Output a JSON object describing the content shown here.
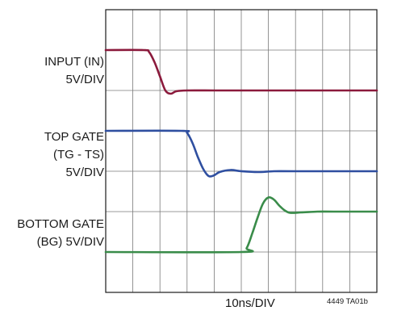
{
  "chart_data": {
    "type": "line",
    "title": "",
    "xlabel": "10ns/DIV",
    "ylabel": "",
    "figure_code": "4449 TA01b",
    "grid": true,
    "x_divisions": 10,
    "y_divisions": 7,
    "x_unit_ns_per_div": 10,
    "xlim": [
      0,
      100
    ],
    "channels": [
      {
        "id": "input",
        "label_lines": [
          "INPUT (IN)",
          "5V/DIV"
        ],
        "color": "#8b1a3c",
        "ylim_div": [
          0,
          7
        ],
        "points": [
          [
            0,
            6.0
          ],
          [
            14,
            6.0
          ],
          [
            16,
            5.95
          ],
          [
            18,
            5.7
          ],
          [
            20,
            5.35
          ],
          [
            22,
            5.0
          ],
          [
            24,
            4.92
          ],
          [
            26,
            4.98
          ],
          [
            30,
            5.0
          ],
          [
            40,
            5.0
          ],
          [
            60,
            5.0
          ],
          [
            80,
            5.0
          ],
          [
            100,
            5.0
          ]
        ]
      },
      {
        "id": "top_gate",
        "label_lines": [
          "TOP GATE",
          "(TG - TS)",
          "5V/DIV"
        ],
        "color": "#2f4fa0",
        "ylim_div": [
          0,
          7
        ],
        "points": [
          [
            0,
            4.0
          ],
          [
            28,
            4.0
          ],
          [
            30,
            3.95
          ],
          [
            32,
            3.7
          ],
          [
            34,
            3.35
          ],
          [
            36,
            3.05
          ],
          [
            38,
            2.88
          ],
          [
            40,
            2.9
          ],
          [
            42,
            2.98
          ],
          [
            46,
            3.03
          ],
          [
            50,
            3.0
          ],
          [
            56,
            2.98
          ],
          [
            62,
            3.0
          ],
          [
            70,
            3.0
          ],
          [
            100,
            3.0
          ]
        ]
      },
      {
        "id": "bottom_gate",
        "label_lines": [
          "BOTTOM GATE",
          "(BG) 5V/DIV"
        ],
        "color": "#3a8c4a",
        "ylim_div": [
          0,
          7
        ],
        "points": [
          [
            0,
            1.0
          ],
          [
            50,
            1.0
          ],
          [
            52,
            1.1
          ],
          [
            54,
            1.45
          ],
          [
            56,
            1.85
          ],
          [
            58,
            2.2
          ],
          [
            60,
            2.35
          ],
          [
            62,
            2.3
          ],
          [
            64,
            2.15
          ],
          [
            66,
            2.03
          ],
          [
            68,
            1.97
          ],
          [
            72,
            1.98
          ],
          [
            78,
            2.0
          ],
          [
            84,
            2.0
          ],
          [
            100,
            2.0
          ]
        ]
      }
    ]
  }
}
